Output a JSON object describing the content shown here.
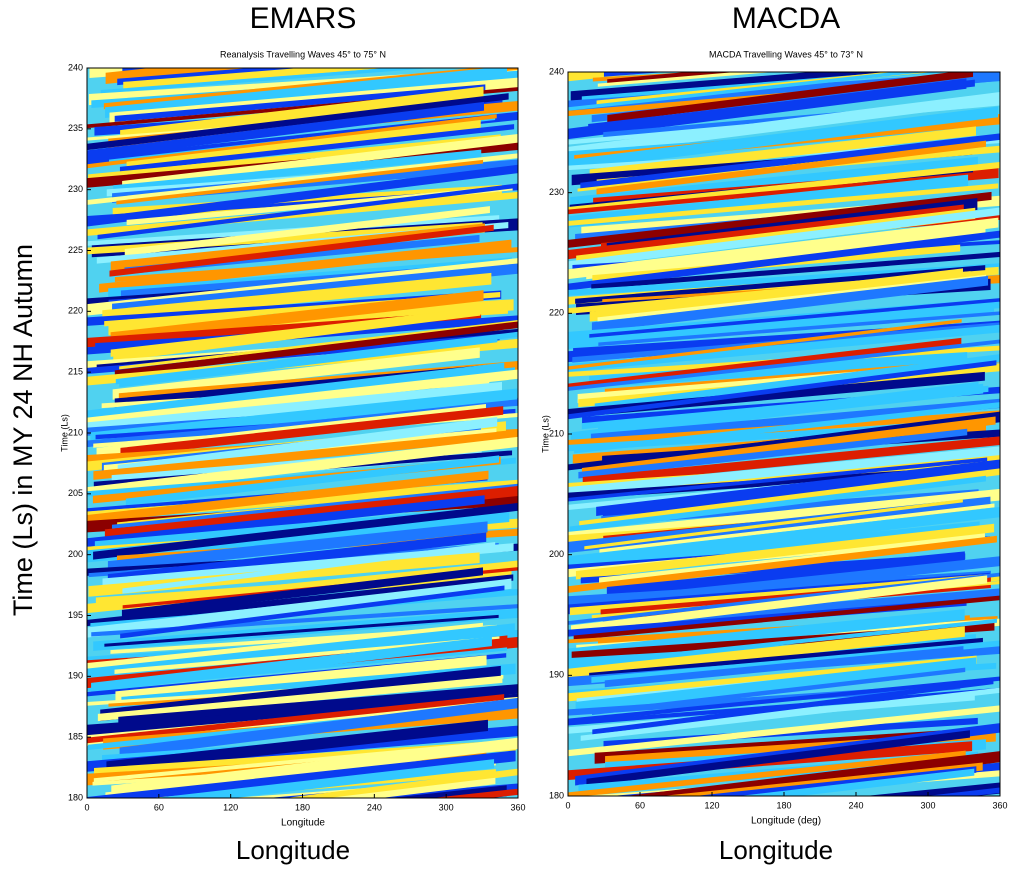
{
  "figure_ylabel": "Time (Ls) in MY 24 NH Autumn",
  "chart_data": [
    {
      "type": "contour",
      "title": "EMARS",
      "subtitle": "Reanalysis Travelling Waves 45° to 75° N",
      "xlabel": "Longitude",
      "ylabel": "Time (Ls)",
      "caption": "Longitude",
      "xlim": [
        0,
        360
      ],
      "xticks": [
        0,
        60,
        120,
        180,
        240,
        300,
        360
      ],
      "ylim": [
        180,
        240
      ],
      "yticks": [
        180,
        185,
        190,
        195,
        200,
        205,
        210,
        215,
        220,
        225,
        230,
        235,
        240
      ]
    },
    {
      "type": "contour",
      "title": "MACDA",
      "subtitle": "MACDA Travelling Waves 45° to 73° N",
      "xlabel": "Longitude (deg)",
      "ylabel": "Time (Ls)",
      "caption": "Longitude",
      "xlim": [
        0,
        360
      ],
      "xticks": [
        0,
        60,
        120,
        180,
        240,
        300,
        360
      ],
      "ylim": [
        180,
        240
      ],
      "yticks": [
        180,
        190,
        200,
        210,
        220,
        230,
        240
      ]
    }
  ]
}
